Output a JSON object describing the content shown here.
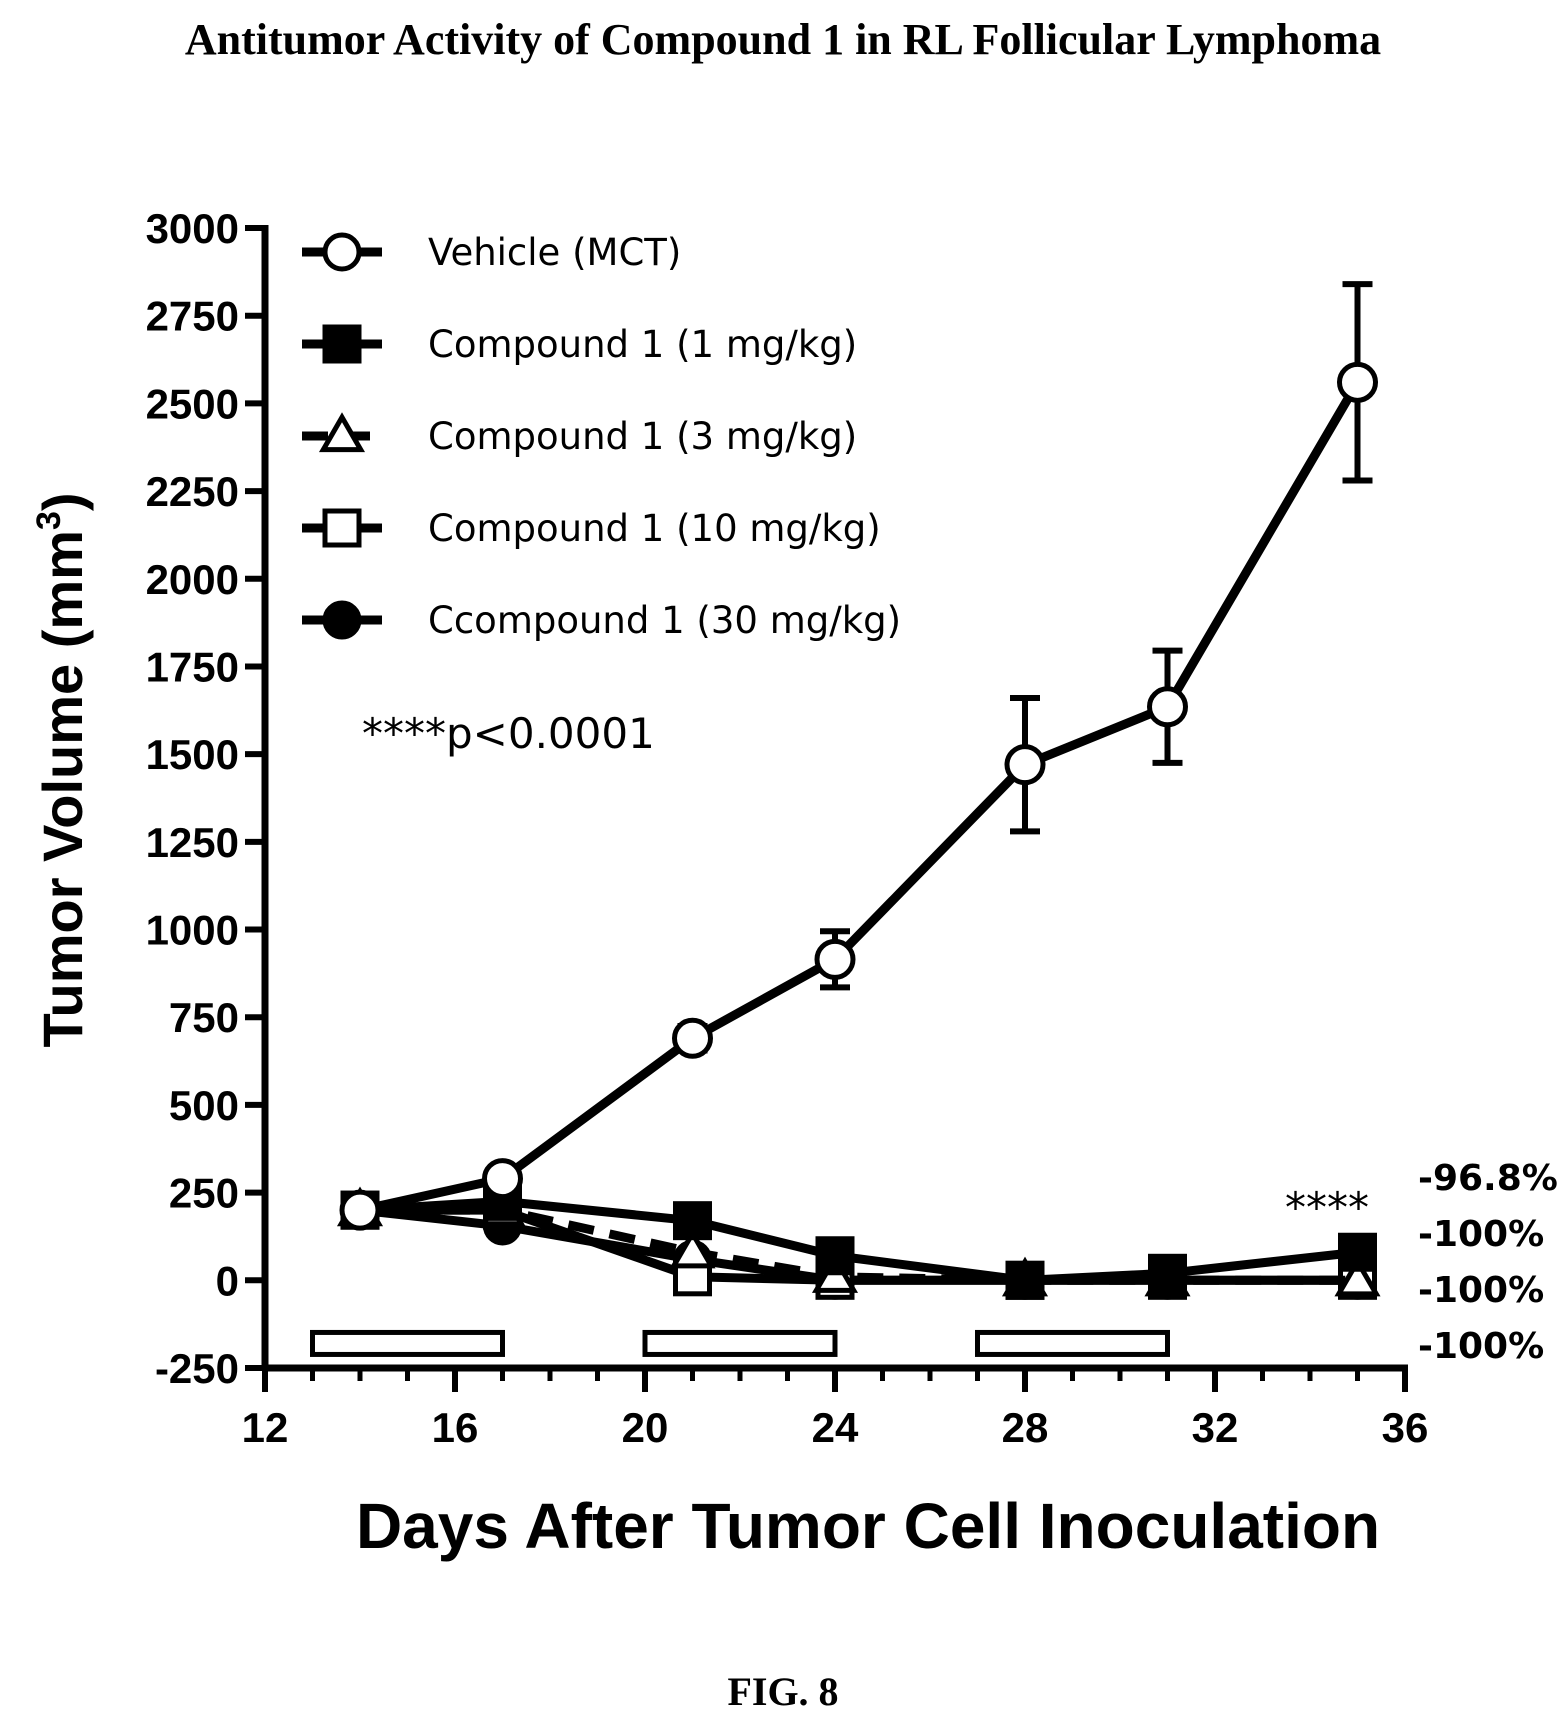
{
  "page": {
    "title": "Antitumor Activity of Compound 1 in RL Follicular Lymphoma",
    "caption": "FIG. 8"
  },
  "chart_data": {
    "type": "line",
    "title": "Antitumor Activity of Compound 1 in RL Follicular Lymphoma",
    "xlabel": "Days After Tumor Cell Inoculation",
    "ylabel": "Tumor Volume (mm",
    "ylabel_superscript": "3",
    "ylabel_close": ")",
    "xlim": [
      12,
      36
    ],
    "ylim": [
      -250,
      3000
    ],
    "x_ticks": [
      "12",
      "16",
      "20",
      "24",
      "28",
      "32",
      "36"
    ],
    "x_tick_values": [
      12,
      16,
      20,
      24,
      28,
      32,
      36
    ],
    "x_minor_tick_step": 1,
    "y_ticks": [
      "-250",
      "0",
      "250",
      "500",
      "750",
      "1000",
      "1250",
      "1500",
      "1750",
      "2000",
      "2250",
      "2500",
      "2750",
      "3000"
    ],
    "y_tick_values": [
      -250,
      0,
      250,
      500,
      750,
      1000,
      1250,
      1500,
      1750,
      2000,
      2250,
      2500,
      2750,
      3000
    ],
    "grid": false,
    "legend_position": "top-left",
    "series": [
      {
        "name": "Vehicle (MCT)",
        "marker": "open-circle",
        "line": "solid",
        "x": [
          14,
          17,
          21,
          24,
          28,
          31,
          35
        ],
        "y": [
          200,
          290,
          690,
          915,
          1470,
          1635,
          2560
        ],
        "err": [
          0,
          0,
          35,
          80,
          190,
          160,
          280
        ]
      },
      {
        "name": "Compound 1 (1 mg/kg)",
        "marker": "filled-square",
        "line": "solid",
        "x": [
          14,
          17,
          21,
          24,
          28,
          31,
          35
        ],
        "y": [
          200,
          225,
          170,
          70,
          0,
          20,
          80
        ],
        "err": [
          0,
          0,
          0,
          0,
          0,
          0,
          0
        ]
      },
      {
        "name": "Compound 1 (3 mg/kg)",
        "marker": "open-triangle",
        "line": "dashed",
        "x": [
          14,
          17,
          21,
          24,
          28,
          31,
          35
        ],
        "y": [
          200,
          200,
          80,
          10,
          0,
          0,
          0
        ],
        "err": [
          0,
          0,
          0,
          0,
          0,
          0,
          0
        ]
      },
      {
        "name": "Compound 1 (10 mg/kg)",
        "marker": "open-square",
        "line": "solid",
        "x": [
          14,
          17,
          21,
          24,
          28,
          31,
          35
        ],
        "y": [
          200,
          200,
          10,
          0,
          0,
          0,
          0
        ],
        "err": [
          0,
          0,
          0,
          0,
          0,
          0,
          0
        ]
      },
      {
        "name": "Ccompound 1 (30 mg/kg)",
        "marker": "filled-circle",
        "line": "solid",
        "x": [
          14,
          17,
          21,
          24,
          28,
          31,
          35
        ],
        "y": [
          200,
          155,
          60,
          0,
          0,
          0,
          0
        ],
        "err": [
          0,
          0,
          0,
          0,
          0,
          0,
          0
        ]
      }
    ],
    "dosing_bars": [
      {
        "start": 13,
        "end": 17,
        "y": -180
      },
      {
        "start": 20,
        "end": 24,
        "y": -180
      },
      {
        "start": 27,
        "end": 31,
        "y": -180
      }
    ],
    "annotations": {
      "pvalue": "****p<0.0001",
      "significance": "****",
      "end_labels": [
        "-96.8%",
        "-100%",
        "-100%",
        "-100%"
      ]
    }
  }
}
